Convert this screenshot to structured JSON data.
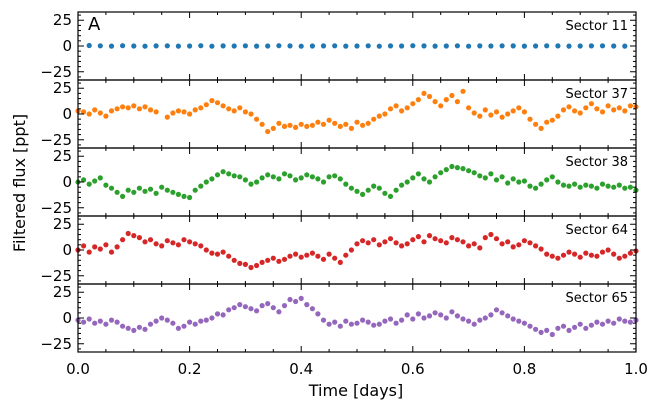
{
  "chart_data": {
    "type": "scatter",
    "panel_letter": "A",
    "xlabel": "Time [days]",
    "ylabel": "Filtered flux [ppt]",
    "xlim": [
      0.0,
      1.0
    ],
    "x_ticks": [
      "0.0",
      "0.2",
      "0.4",
      "0.6",
      "0.8",
      "1.0"
    ],
    "ylim": [
      -33,
      33
    ],
    "y_ticks": [
      "25",
      "0",
      "−25"
    ],
    "y_ticks_first_panel": [
      "25",
      "0",
      "−25"
    ],
    "panels": [
      {
        "label": "Sector 11",
        "color": "#1f77b4",
        "x": [
          0.02,
          0.04,
          0.06,
          0.08,
          0.1,
          0.12,
          0.14,
          0.16,
          0.18,
          0.2,
          0.22,
          0.24,
          0.26,
          0.28,
          0.3,
          0.32,
          0.34,
          0.36,
          0.38,
          0.4,
          0.42,
          0.44,
          0.46,
          0.48,
          0.5,
          0.52,
          0.54,
          0.56,
          0.58,
          0.6,
          0.62,
          0.64,
          0.66,
          0.68,
          0.7,
          0.72,
          0.74,
          0.76,
          0.78,
          0.8,
          0.82,
          0.84,
          0.86,
          0.88,
          0.9,
          0.92,
          0.94,
          0.96,
          0.98
        ],
        "y": [
          0.5,
          0.2,
          -0.1,
          0.3,
          0.0,
          -0.2,
          0.1,
          0.2,
          -0.1,
          0.0,
          0.3,
          -0.2,
          0.1,
          0.0,
          0.2,
          -0.1,
          0.0,
          0.3,
          0.1,
          -0.2,
          0.0,
          0.1,
          0.2,
          -0.1,
          0.0,
          0.2,
          -0.2,
          0.1,
          0.0,
          0.3,
          0.1,
          -0.1,
          0.0,
          0.2,
          -0.2,
          0.1,
          0.0,
          0.2,
          0.1,
          -0.1,
          0.0,
          0.2,
          0.1,
          -0.1,
          0.0,
          0.1,
          0.2,
          0.0,
          -0.1
        ]
      },
      {
        "label": "Sector 37",
        "color": "#ff7f0e",
        "x": [
          0.0,
          0.01,
          0.02,
          0.03,
          0.04,
          0.05,
          0.06,
          0.07,
          0.08,
          0.09,
          0.1,
          0.11,
          0.12,
          0.13,
          0.14,
          0.16,
          0.17,
          0.18,
          0.19,
          0.2,
          0.21,
          0.22,
          0.23,
          0.24,
          0.25,
          0.26,
          0.27,
          0.28,
          0.29,
          0.3,
          0.31,
          0.32,
          0.33,
          0.34,
          0.35,
          0.36,
          0.37,
          0.38,
          0.39,
          0.4,
          0.41,
          0.42,
          0.43,
          0.44,
          0.45,
          0.46,
          0.47,
          0.48,
          0.49,
          0.5,
          0.51,
          0.52,
          0.53,
          0.54,
          0.55,
          0.56,
          0.57,
          0.58,
          0.59,
          0.6,
          0.61,
          0.62,
          0.63,
          0.64,
          0.65,
          0.66,
          0.67,
          0.68,
          0.69,
          0.7,
          0.71,
          0.72,
          0.73,
          0.74,
          0.75,
          0.76,
          0.77,
          0.78,
          0.79,
          0.8,
          0.81,
          0.82,
          0.83,
          0.84,
          0.85,
          0.86,
          0.87,
          0.88,
          0.89,
          0.9,
          0.91,
          0.92,
          0.93,
          0.94,
          0.95,
          0.96,
          0.97,
          0.98,
          0.99,
          1.0
        ],
        "y": [
          3,
          2,
          0,
          4,
          1,
          -2,
          3,
          5,
          7,
          6,
          8,
          5,
          7,
          4,
          2,
          -3,
          1,
          3,
          2,
          0,
          4,
          6,
          9,
          13,
          11,
          8,
          5,
          3,
          6,
          2,
          0,
          -5,
          -10,
          -17,
          -14,
          -9,
          -12,
          -11,
          -13,
          -10,
          -12,
          -11,
          -8,
          -10,
          -6,
          -9,
          -12,
          -10,
          -14,
          -8,
          -11,
          -9,
          -5,
          -2,
          0,
          5,
          8,
          3,
          6,
          10,
          14,
          20,
          17,
          12,
          8,
          14,
          18,
          12,
          22,
          6,
          1,
          -2,
          4,
          -1,
          2,
          -3,
          0,
          3,
          6,
          2,
          -5,
          -10,
          -14,
          -8,
          -6,
          -2,
          4,
          7,
          3,
          1,
          6,
          10,
          5,
          2,
          8,
          4,
          6,
          3,
          8,
          7
        ]
      },
      {
        "label": "Sector 38",
        "color": "#2ca02c",
        "x": [
          0.0,
          0.01,
          0.02,
          0.03,
          0.04,
          0.05,
          0.06,
          0.07,
          0.08,
          0.09,
          0.1,
          0.11,
          0.12,
          0.13,
          0.14,
          0.15,
          0.16,
          0.17,
          0.18,
          0.19,
          0.2,
          0.21,
          0.22,
          0.23,
          0.24,
          0.25,
          0.26,
          0.27,
          0.28,
          0.29,
          0.3,
          0.31,
          0.32,
          0.33,
          0.34,
          0.35,
          0.36,
          0.37,
          0.38,
          0.39,
          0.4,
          0.41,
          0.42,
          0.43,
          0.44,
          0.45,
          0.46,
          0.47,
          0.48,
          0.49,
          0.5,
          0.51,
          0.52,
          0.53,
          0.54,
          0.55,
          0.56,
          0.57,
          0.58,
          0.59,
          0.6,
          0.61,
          0.62,
          0.63,
          0.64,
          0.65,
          0.66,
          0.67,
          0.68,
          0.69,
          0.7,
          0.71,
          0.72,
          0.73,
          0.74,
          0.75,
          0.76,
          0.77,
          0.78,
          0.79,
          0.8,
          0.81,
          0.82,
          0.83,
          0.84,
          0.85,
          0.86,
          0.87,
          0.88,
          0.89,
          0.9,
          0.91,
          0.92,
          0.93,
          0.94,
          0.95,
          0.96,
          0.97,
          0.98,
          0.99,
          1.0
        ],
        "y": [
          0,
          2,
          -2,
          1,
          4,
          -3,
          -6,
          -10,
          -14,
          -8,
          -10,
          -6,
          -9,
          -7,
          -11,
          -5,
          -8,
          -10,
          -12,
          -14,
          -15,
          -8,
          -4,
          0,
          3,
          7,
          10,
          8,
          6,
          5,
          2,
          -2,
          0,
          4,
          7,
          5,
          3,
          8,
          6,
          2,
          4,
          7,
          5,
          3,
          0,
          5,
          6,
          3,
          -2,
          -6,
          -9,
          -12,
          -8,
          -4,
          -6,
          -11,
          -14,
          -8,
          -3,
          0,
          4,
          8,
          3,
          0,
          5,
          9,
          12,
          15,
          14,
          13,
          11,
          9,
          6,
          4,
          8,
          2,
          5,
          -1,
          3,
          0,
          1,
          -4,
          -6,
          -2,
          2,
          5,
          0,
          -3,
          -4,
          -2,
          -5,
          -3,
          -4,
          -6,
          -2,
          -4,
          -5,
          -3,
          -6,
          -5,
          -8
        ]
      },
      {
        "label": "Sector 64",
        "color": "#d62728",
        "x": [
          0.0,
          0.01,
          0.02,
          0.03,
          0.04,
          0.05,
          0.06,
          0.07,
          0.08,
          0.09,
          0.1,
          0.11,
          0.12,
          0.13,
          0.14,
          0.15,
          0.16,
          0.17,
          0.18,
          0.19,
          0.2,
          0.21,
          0.22,
          0.23,
          0.24,
          0.25,
          0.26,
          0.27,
          0.28,
          0.29,
          0.3,
          0.31,
          0.32,
          0.33,
          0.34,
          0.35,
          0.36,
          0.37,
          0.38,
          0.39,
          0.4,
          0.41,
          0.42,
          0.43,
          0.44,
          0.45,
          0.46,
          0.47,
          0.48,
          0.49,
          0.5,
          0.51,
          0.52,
          0.53,
          0.54,
          0.55,
          0.56,
          0.57,
          0.58,
          0.59,
          0.6,
          0.61,
          0.62,
          0.63,
          0.64,
          0.65,
          0.66,
          0.67,
          0.68,
          0.69,
          0.7,
          0.71,
          0.72,
          0.73,
          0.74,
          0.75,
          0.76,
          0.77,
          0.78,
          0.79,
          0.8,
          0.81,
          0.82,
          0.83,
          0.84,
          0.85,
          0.86,
          0.87,
          0.88,
          0.89,
          0.9,
          0.91,
          0.92,
          0.93,
          0.94,
          0.95,
          0.96,
          0.97,
          0.98,
          0.99,
          1.0
        ],
        "y": [
          0,
          4,
          -2,
          3,
          1,
          5,
          -2,
          3,
          10,
          16,
          14,
          12,
          8,
          10,
          6,
          4,
          9,
          7,
          5,
          10,
          8,
          6,
          4,
          0,
          -3,
          -4,
          -2,
          -6,
          -10,
          -13,
          -14,
          -17,
          -15,
          -12,
          -10,
          -8,
          -11,
          -9,
          -6,
          -4,
          -7,
          -5,
          -3,
          -6,
          -9,
          -4,
          -8,
          -12,
          -5,
          0,
          6,
          9,
          7,
          10,
          5,
          8,
          11,
          7,
          4,
          6,
          10,
          13,
          8,
          14,
          11,
          9,
          7,
          12,
          10,
          8,
          4,
          6,
          2,
          12,
          15,
          11,
          6,
          8,
          3,
          5,
          9,
          7,
          4,
          1,
          -4,
          -6,
          -8,
          -5,
          -2,
          -4,
          -7,
          -3,
          -5,
          -6,
          -2,
          0,
          -4,
          -8,
          -6,
          -3,
          -1
        ]
      },
      {
        "label": "Sector 65",
        "color": "#9467bd",
        "x": [
          0.0,
          0.01,
          0.02,
          0.03,
          0.04,
          0.05,
          0.06,
          0.07,
          0.08,
          0.09,
          0.1,
          0.11,
          0.12,
          0.13,
          0.14,
          0.15,
          0.16,
          0.17,
          0.18,
          0.19,
          0.2,
          0.21,
          0.22,
          0.23,
          0.24,
          0.25,
          0.26,
          0.27,
          0.28,
          0.29,
          0.3,
          0.31,
          0.32,
          0.33,
          0.34,
          0.35,
          0.36,
          0.37,
          0.38,
          0.39,
          0.4,
          0.41,
          0.42,
          0.43,
          0.44,
          0.45,
          0.46,
          0.47,
          0.48,
          0.49,
          0.5,
          0.51,
          0.52,
          0.53,
          0.54,
          0.55,
          0.56,
          0.57,
          0.58,
          0.59,
          0.6,
          0.61,
          0.62,
          0.63,
          0.64,
          0.65,
          0.66,
          0.67,
          0.68,
          0.69,
          0.7,
          0.71,
          0.72,
          0.73,
          0.74,
          0.75,
          0.76,
          0.77,
          0.78,
          0.79,
          0.8,
          0.81,
          0.82,
          0.83,
          0.84,
          0.85,
          0.86,
          0.87,
          0.88,
          0.89,
          0.9,
          0.91,
          0.92,
          0.93,
          0.94,
          0.95,
          0.96,
          0.97,
          0.98,
          0.99,
          1.0
        ],
        "y": [
          -2,
          -4,
          -1,
          -5,
          -3,
          -6,
          -2,
          -4,
          -8,
          -10,
          -12,
          -9,
          -11,
          -6,
          -3,
          0,
          -2,
          -5,
          -10,
          -8,
          -4,
          -6,
          -3,
          -2,
          0,
          4,
          3,
          8,
          10,
          13,
          11,
          9,
          7,
          12,
          14,
          10,
          6,
          12,
          18,
          16,
          19,
          13,
          9,
          4,
          -2,
          -6,
          -4,
          -8,
          -3,
          -6,
          -5,
          -2,
          -4,
          -7,
          -6,
          -3,
          -1,
          -5,
          -2,
          3,
          -1,
          4,
          0,
          2,
          5,
          3,
          0,
          6,
          2,
          -1,
          -3,
          -6,
          -2,
          0,
          3,
          8,
          5,
          2,
          -1,
          -3,
          -5,
          -8,
          -11,
          -14,
          -12,
          -16,
          -10,
          -8,
          -12,
          -9,
          -6,
          -10,
          -7,
          -4,
          -6,
          -3,
          -5,
          -1,
          -3,
          -4,
          -2
        ]
      }
    ]
  }
}
